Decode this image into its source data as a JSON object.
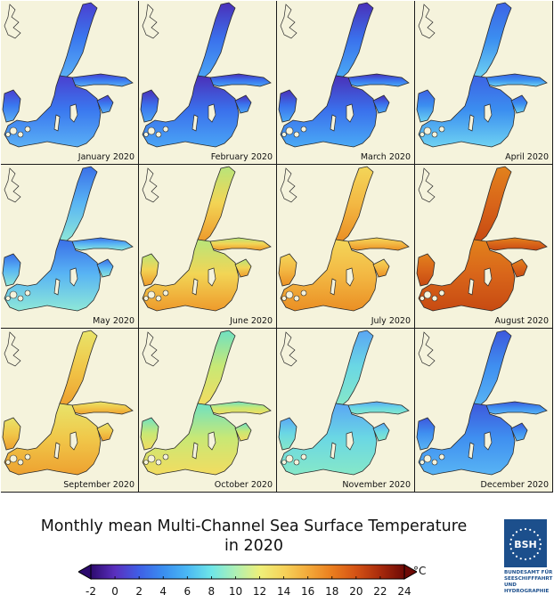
{
  "title_line1": "Monthly mean Multi-Channel Sea Surface Temperature",
  "title_line2": "in 2020",
  "panels": [
    {
      "label": "January 2020",
      "north_color": "#4a3fd0",
      "mid_color": "#3a78ef",
      "south_color": "#5ab0f5"
    },
    {
      "label": "February 2020",
      "north_color": "#4b2fb8",
      "mid_color": "#3a70ec",
      "south_color": "#4aa5f5"
    },
    {
      "label": "March 2020",
      "north_color": "#4a30b8",
      "mid_color": "#3a70ec",
      "south_color": "#4aaaf5"
    },
    {
      "label": "April 2020",
      "north_color": "#3d63e4",
      "mid_color": "#3b8ef0",
      "south_color": "#6ed2f2"
    },
    {
      "label": "May 2020",
      "north_color": "#3a6fe8",
      "mid_color": "#58b4f4",
      "south_color": "#8ee8d8"
    },
    {
      "label": "June 2020",
      "north_color": "#b8e57a",
      "mid_color": "#f2d555",
      "south_color": "#ee9a2c"
    },
    {
      "label": "July 2020",
      "north_color": "#f3d659",
      "mid_color": "#f3b944",
      "south_color": "#ea8f24"
    },
    {
      "label": "August 2020",
      "north_color": "#e2821c",
      "mid_color": "#d9661a",
      "south_color": "#c74a12"
    },
    {
      "label": "September 2020",
      "north_color": "#e8e46a",
      "mid_color": "#f0c84a",
      "south_color": "#eea130"
    },
    {
      "label": "October 2020",
      "north_color": "#6fe1c2",
      "mid_color": "#c8e875",
      "south_color": "#f3dc60"
    },
    {
      "label": "November 2020",
      "north_color": "#5aa6f4",
      "mid_color": "#6ad7e4",
      "south_color": "#86e8c8"
    },
    {
      "label": "December 2020",
      "north_color": "#3d58dc",
      "mid_color": "#3f8ff0",
      "south_color": "#58b4f4"
    }
  ],
  "colorbar": {
    "unit": "°C",
    "min": -2,
    "max": 24,
    "ticks": [
      "-2",
      "0",
      "2",
      "4",
      "6",
      "8",
      "10",
      "12",
      "14",
      "16",
      "18",
      "20",
      "22",
      "24"
    ],
    "tick_values": [
      -2,
      0,
      2,
      4,
      6,
      8,
      10,
      12,
      14,
      16,
      18,
      20,
      22,
      24
    ],
    "colors": [
      "#2d0a6e",
      "#5a2fbe",
      "#3f5fe6",
      "#3a8ef0",
      "#4ab8f4",
      "#6ee6e8",
      "#aef0b4",
      "#eef07a",
      "#f6d35a",
      "#f3aa3a",
      "#ea7d1e",
      "#d45214",
      "#a82a0c",
      "#6e0a06"
    ]
  },
  "logo": {
    "lines": [
      "BUNDESAMT FÜR",
      "SEESCHIFFFAHRT",
      "UND",
      "HYDROGRAPHIE"
    ],
    "bg_color": "#1c4f8c"
  },
  "land_color": "#f5f3dc"
}
